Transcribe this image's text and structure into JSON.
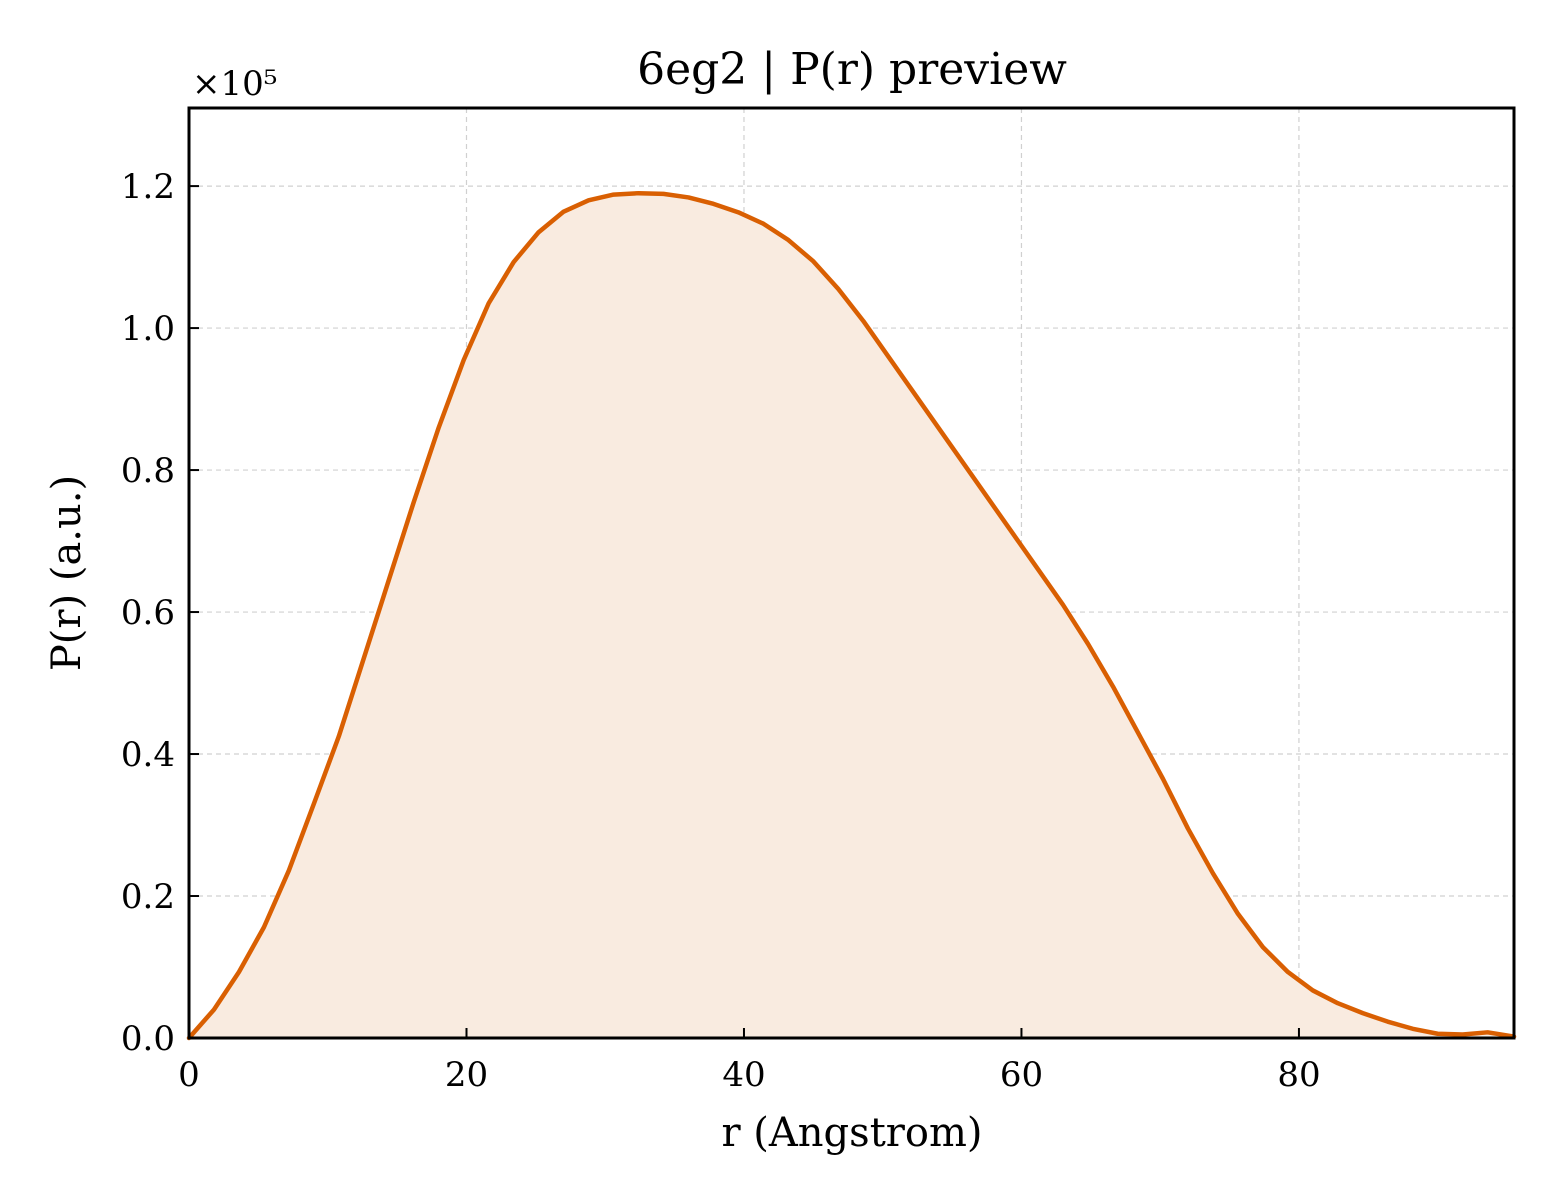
{
  "chart_data": {
    "type": "area",
    "title": "6eg2 | P(r) preview",
    "xlabel": "r (Angstrom)",
    "ylabel": "P(r) (a.u.)",
    "y_multiplier_label": "×10⁵",
    "xlim": [
      0,
      95.5
    ],
    "ylim": [
      0,
      1.31
    ],
    "xticks": [
      0,
      20,
      40,
      60,
      80
    ],
    "xtick_labels": [
      "0",
      "20",
      "40",
      "60",
      "80"
    ],
    "yticks": [
      0.0,
      0.2,
      0.4,
      0.6,
      0.8,
      1.0,
      1.2
    ],
    "ytick_labels": [
      "0.0",
      "0.2",
      "0.4",
      "0.6",
      "0.8",
      "1.0",
      "1.2"
    ],
    "grid": true,
    "line_color": "#d95f02",
    "fill_color": "#f9ebe0",
    "series": [
      {
        "x": [
          0,
          1.8,
          3.6,
          5.4,
          7.2,
          9.0,
          10.8,
          12.6,
          14.4,
          16.2,
          18.0,
          19.8,
          21.6,
          23.4,
          25.2,
          27.0,
          28.8,
          30.6,
          32.4,
          34.2,
          36.0,
          37.8,
          39.6,
          41.4,
          43.2,
          45.0,
          46.8,
          48.6,
          50.4,
          52.2,
          54.0,
          55.8,
          57.6,
          59.4,
          61.2,
          63.0,
          64.8,
          66.6,
          68.4,
          70.2,
          72.0,
          73.8,
          75.6,
          77.4,
          79.2,
          81.0,
          82.8,
          84.6,
          86.4,
          88.2,
          90.0,
          91.8,
          93.6,
          95.5
        ],
        "y": [
          0.0,
          0.04,
          0.093,
          0.156,
          0.236,
          0.33,
          0.425,
          0.535,
          0.645,
          0.755,
          0.86,
          0.955,
          1.035,
          1.093,
          1.135,
          1.164,
          1.18,
          1.188,
          1.19,
          1.189,
          1.184,
          1.175,
          1.163,
          1.147,
          1.124,
          1.094,
          1.055,
          1.01,
          0.96,
          0.91,
          0.86,
          0.81,
          0.76,
          0.71,
          0.66,
          0.61,
          0.555,
          0.495,
          0.43,
          0.365,
          0.295,
          0.232,
          0.175,
          0.128,
          0.093,
          0.067,
          0.049,
          0.035,
          0.023,
          0.013,
          0.006,
          0.005,
          0.008,
          0.002
        ]
      }
    ]
  }
}
